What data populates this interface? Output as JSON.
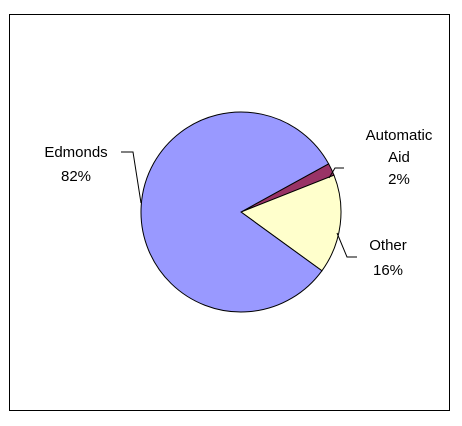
{
  "chart_data": {
    "type": "pie",
    "title": "",
    "slices": [
      {
        "name": "Automatic Aid",
        "label_lines": [
          "Automatic",
          "Aid"
        ],
        "value_label": "2%",
        "value": 2,
        "color": "#993366"
      },
      {
        "name": "Other",
        "label_lines": [
          "Other"
        ],
        "value_label": "16%",
        "value": 16,
        "color": "#FFFFCC"
      },
      {
        "name": "Edmonds",
        "label_lines": [
          "Edmonds"
        ],
        "value_label": "82%",
        "value": 82,
        "color": "#9999FF"
      }
    ],
    "legend": "none",
    "border_color": "#000000"
  }
}
